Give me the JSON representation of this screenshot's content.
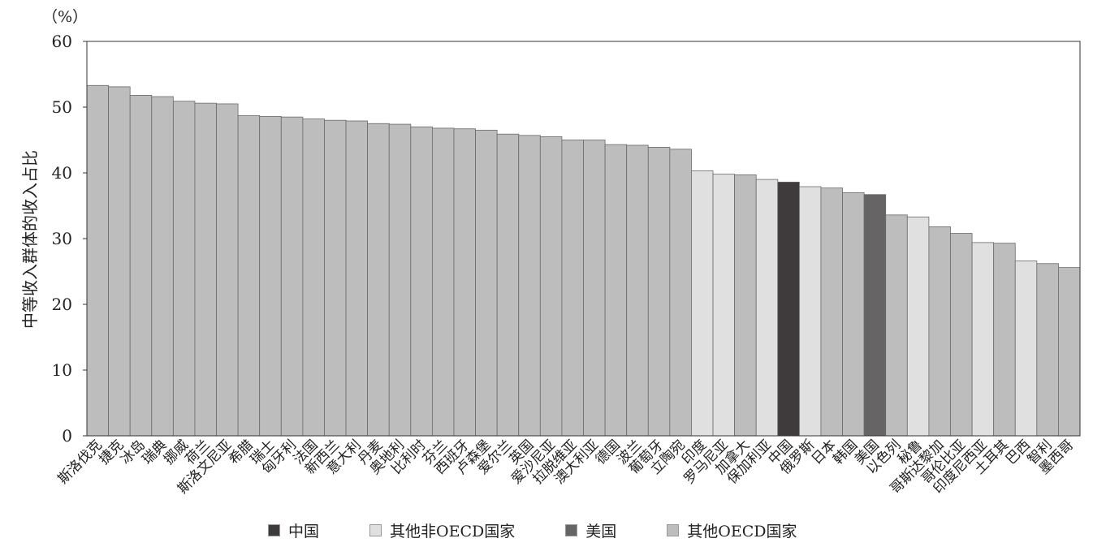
{
  "chart_data": {
    "type": "bar",
    "unit_label": "（%）",
    "ylabel": "中等收入群体的收入占比",
    "xlabel": "",
    "ylim": [
      0,
      60
    ],
    "yticks": [
      0,
      10,
      20,
      30,
      40,
      50,
      60
    ],
    "grid": false,
    "legend_position": "bottom",
    "categories": [
      "斯洛伐克",
      "捷克",
      "冰岛",
      "瑞典",
      "挪威",
      "荷兰",
      "斯洛文尼亚",
      "希腊",
      "瑞士",
      "匈牙利",
      "法国",
      "新西兰",
      "意大利",
      "丹麦",
      "奥地利",
      "比利时",
      "芬兰",
      "西班牙",
      "卢森堡",
      "爱尔兰",
      "英国",
      "爱沙尼亚",
      "拉脱维亚",
      "澳大利亚",
      "德国",
      "波兰",
      "葡萄牙",
      "立陶宛",
      "印度",
      "罗马尼亚",
      "加拿大",
      "保加利亚",
      "中国",
      "俄罗斯",
      "日本",
      "韩国",
      "美国",
      "以色列",
      "秘鲁",
      "哥斯达黎加",
      "哥伦比亚",
      "印度尼西亚",
      "土耳其",
      "巴西",
      "智利",
      "墨西哥"
    ],
    "values": [
      53.3,
      53.1,
      51.8,
      51.6,
      50.9,
      50.6,
      50.5,
      48.7,
      48.6,
      48.5,
      48.2,
      48.0,
      47.9,
      47.5,
      47.4,
      47.0,
      46.8,
      46.7,
      46.5,
      45.9,
      45.7,
      45.5,
      45.0,
      45.0,
      44.3,
      44.2,
      43.9,
      43.6,
      40.3,
      39.8,
      39.7,
      39.0,
      38.6,
      37.9,
      37.7,
      37.0,
      36.7,
      33.6,
      33.3,
      31.8,
      30.8,
      29.4,
      29.3,
      26.6,
      26.2,
      25.6
    ],
    "groups": [
      "oecd",
      "oecd",
      "oecd",
      "oecd",
      "oecd",
      "oecd",
      "oecd",
      "oecd",
      "oecd",
      "oecd",
      "oecd",
      "oecd",
      "oecd",
      "oecd",
      "oecd",
      "oecd",
      "oecd",
      "oecd",
      "oecd",
      "oecd",
      "oecd",
      "oecd",
      "oecd",
      "oecd",
      "oecd",
      "oecd",
      "oecd",
      "oecd",
      "nonoecd",
      "nonoecd",
      "oecd",
      "nonoecd",
      "china",
      "nonoecd",
      "oecd",
      "oecd",
      "usa",
      "oecd",
      "nonoecd",
      "oecd",
      "oecd",
      "nonoecd",
      "oecd",
      "nonoecd",
      "oecd",
      "oecd"
    ],
    "legend": [
      {
        "key": "china",
        "label": "中国",
        "color": "#3f3b3c"
      },
      {
        "key": "nonoecd",
        "label": "其他非OECD国家",
        "color": "#e0e0e0"
      },
      {
        "key": "usa",
        "label": "美国",
        "color": "#666464"
      },
      {
        "key": "oecd",
        "label": "其他OECD国家",
        "color": "#bdbdbd"
      }
    ]
  }
}
